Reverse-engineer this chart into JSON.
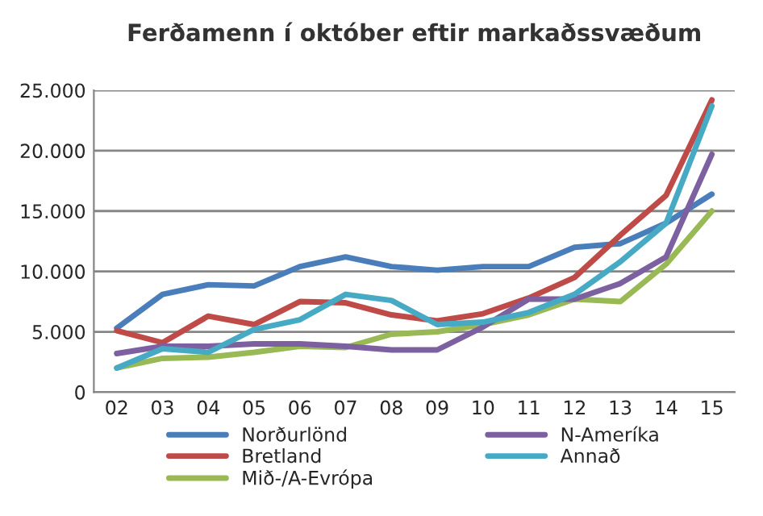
{
  "chart_data": {
    "type": "line",
    "title": "Ferðamenn í október eftir markaðssvæðum",
    "categories": [
      "02",
      "03",
      "04",
      "05",
      "06",
      "07",
      "08",
      "09",
      "10",
      "11",
      "12",
      "13",
      "14",
      "15"
    ],
    "series": [
      {
        "name": "Norðurlönd",
        "color": "#4a7ebb",
        "values": [
          5300,
          8100,
          8900,
          8800,
          10400,
          11200,
          10400,
          10100,
          10400,
          10400,
          12000,
          12300,
          14000,
          16400
        ]
      },
      {
        "name": "Bretland",
        "color": "#be4b48",
        "values": [
          5100,
          4100,
          6300,
          5600,
          7500,
          7400,
          6400,
          5900,
          6500,
          7800,
          9500,
          13000,
          16300,
          24200
        ]
      },
      {
        "name": "Mið-/A-Evrópa",
        "color": "#98b954",
        "values": [
          2000,
          2800,
          2900,
          3300,
          3800,
          3700,
          4800,
          5000,
          5600,
          6400,
          7700,
          7500,
          10600,
          15000
        ]
      },
      {
        "name": "N-Ameríka",
        "color": "#7d60a0",
        "values": [
          3200,
          3800,
          3800,
          4000,
          4000,
          3800,
          3500,
          3500,
          5400,
          7700,
          7700,
          9000,
          11200,
          19700
        ]
      },
      {
        "name": "Annað",
        "color": "#46aac5",
        "values": [
          2000,
          3600,
          3300,
          5200,
          6000,
          8100,
          7600,
          5600,
          5800,
          6600,
          8100,
          10800,
          14000,
          23700
        ]
      }
    ],
    "ylim": [
      0,
      25000
    ],
    "yticks": [
      {
        "value": 0,
        "label": "0"
      },
      {
        "value": 5000,
        "label": "5.000"
      },
      {
        "value": 10000,
        "label": "10.000"
      },
      {
        "value": 15000,
        "label": "15.000"
      },
      {
        "value": 20000,
        "label": "20.000"
      },
      {
        "value": 25000,
        "label": "25.000"
      }
    ],
    "grid": "y",
    "legend": "bottom",
    "marker": "none",
    "line_style": "solid"
  }
}
